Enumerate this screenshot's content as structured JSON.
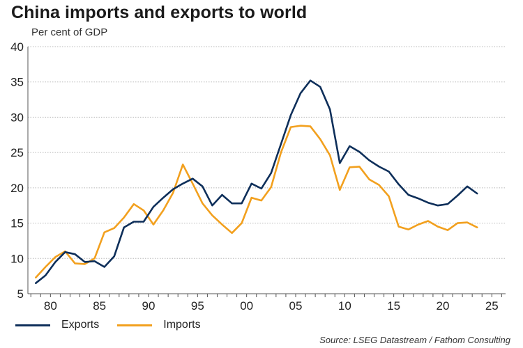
{
  "chart_data": {
    "type": "line",
    "title": "China imports and exports to world",
    "subtitle": "Per cent of GDP",
    "xlabel": "",
    "ylabel": "",
    "xlim": [
      1977.7,
      2026.4
    ],
    "ylim": [
      5,
      40
    ],
    "yticks": [
      5,
      10,
      15,
      20,
      25,
      30,
      35,
      40
    ],
    "xticks": [
      {
        "value": 1980,
        "label": "80"
      },
      {
        "value": 1985,
        "label": "85"
      },
      {
        "value": 1990,
        "label": "90"
      },
      {
        "value": 1995,
        "label": "95"
      },
      {
        "value": 2000,
        "label": "00"
      },
      {
        "value": 2005,
        "label": "05"
      },
      {
        "value": 2010,
        "label": "10"
      },
      {
        "value": 2015,
        "label": "15"
      },
      {
        "value": 2020,
        "label": "20"
      },
      {
        "value": 2025,
        "label": "25"
      }
    ],
    "x": [
      1978.5,
      1979.5,
      1980.5,
      1981.5,
      1982.5,
      1983.5,
      1984.5,
      1985.5,
      1986.5,
      1987.5,
      1988.5,
      1989.5,
      1990.5,
      1991.5,
      1992.5,
      1993.5,
      1994.5,
      1995.5,
      1996.5,
      1997.5,
      1998.5,
      1999.5,
      2000.5,
      2001.5,
      2002.5,
      2003.5,
      2004.5,
      2005.5,
      2006.5,
      2007.5,
      2008.5,
      2009.5,
      2010.5,
      2011.5,
      2012.5,
      2013.5,
      2014.5,
      2015.5,
      2016.5,
      2017.5,
      2018.5,
      2019.5,
      2020.5,
      2021.5,
      2022.5,
      2023.5
    ],
    "series": [
      {
        "name": "Exports",
        "color": "#0e2f5a",
        "values": [
          6.5,
          7.6,
          9.5,
          10.9,
          10.6,
          9.5,
          9.6,
          8.8,
          10.3,
          14.4,
          15.2,
          15.2,
          17.3,
          18.6,
          19.8,
          20.6,
          21.3,
          20.2,
          17.5,
          19.0,
          17.8,
          17.8,
          20.6,
          19.9,
          22.1,
          26.2,
          30.3,
          33.4,
          35.2,
          34.3,
          31.1,
          23.5,
          25.9,
          25.1,
          23.9,
          23.0,
          22.3,
          20.5,
          19.0,
          18.5,
          17.9,
          17.5,
          17.7,
          18.9,
          20.2,
          19.2
        ]
      },
      {
        "name": "Imports",
        "color": "#f2a01e",
        "values": [
          7.3,
          8.8,
          10.2,
          11.0,
          9.3,
          9.2,
          10.0,
          13.7,
          14.3,
          15.8,
          17.7,
          16.8,
          14.8,
          16.8,
          19.3,
          23.3,
          20.6,
          17.8,
          16.1,
          14.8,
          13.6,
          15.0,
          18.6,
          18.2,
          20.1,
          25.0,
          28.6,
          28.8,
          28.7,
          26.9,
          24.6,
          19.7,
          22.9,
          23.0,
          21.2,
          20.4,
          18.8,
          14.5,
          14.1,
          14.8,
          15.3,
          14.5,
          14.0,
          15.0,
          15.1,
          14.4
        ]
      }
    ],
    "legend_position": "bottom-left",
    "grid": true
  },
  "legend": {
    "exports_label": "Exports",
    "imports_label": "Imports"
  },
  "source": "Source: LSEG Datastream / Fathom Consulting"
}
